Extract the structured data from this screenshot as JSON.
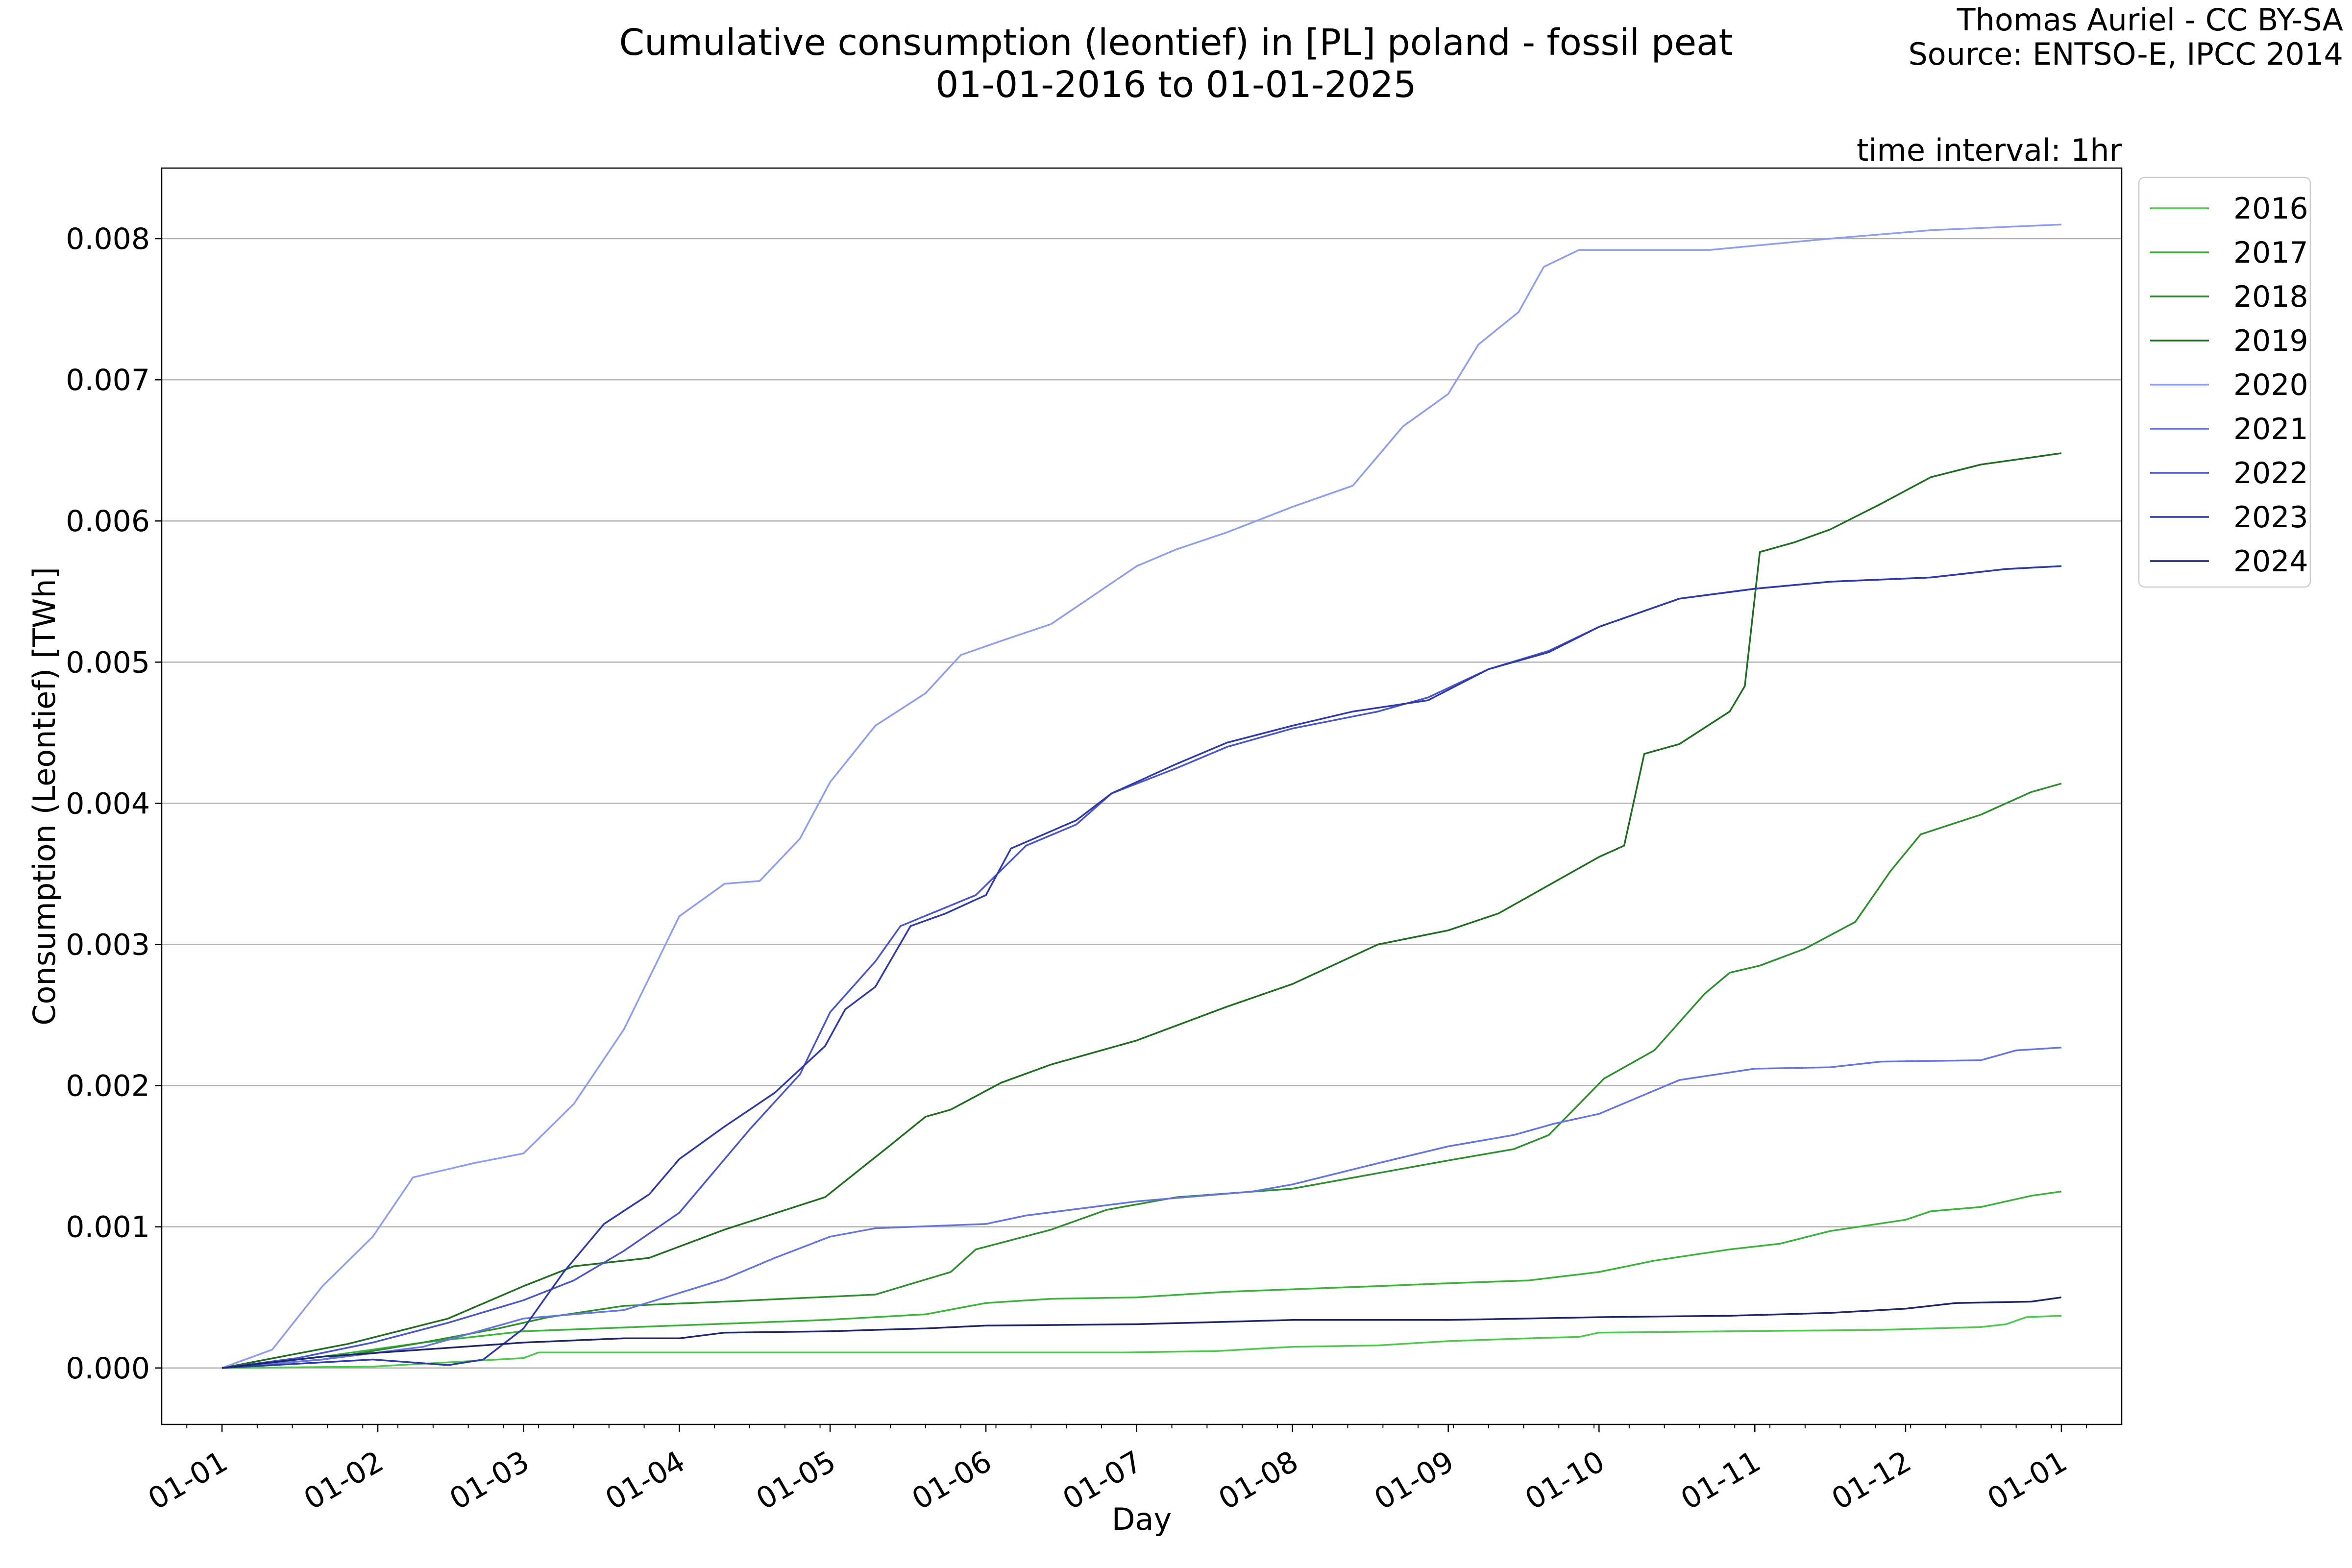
{
  "header": {
    "title_line1": "Cumulative consumption (leontief) in [PL] poland - fossil peat",
    "title_line2": "01-01-2016 to 01-01-2025",
    "credit_line1": "Thomas Auriel - CC BY-SA",
    "credit_line2": "Source: ENTSO-E, IPCC 2014",
    "interval_note": "time interval: 1hr"
  },
  "chart_data": {
    "type": "line",
    "title": "Cumulative consumption (leontief) in [PL] poland - fossil peat",
    "subtitle": "01-01-2016 to 01-01-2025",
    "xlabel": "Day",
    "ylabel": "Consumption (Leontief) [TWh]",
    "x_unit": "day of year",
    "xlim": [
      -12,
      378
    ],
    "ylim": [
      -0.0004,
      0.0085
    ],
    "x_ticks": [
      {
        "label": "01-01",
        "day": 0
      },
      {
        "label": "01-02",
        "day": 31
      },
      {
        "label": "01-03",
        "day": 60
      },
      {
        "label": "01-04",
        "day": 91
      },
      {
        "label": "01-05",
        "day": 121
      },
      {
        "label": "01-06",
        "day": 152
      },
      {
        "label": "01-07",
        "day": 182
      },
      {
        "label": "01-08",
        "day": 213
      },
      {
        "label": "01-09",
        "day": 244
      },
      {
        "label": "01-10",
        "day": 274
      },
      {
        "label": "01-11",
        "day": 305
      },
      {
        "label": "01-12",
        "day": 335
      },
      {
        "label": "01-01",
        "day": 366
      }
    ],
    "y_ticks": [
      {
        "label": "0.000",
        "value": 0
      },
      {
        "label": "0.001",
        "value": 0.001
      },
      {
        "label": "0.002",
        "value": 0.002
      },
      {
        "label": "0.003",
        "value": 0.003
      },
      {
        "label": "0.004",
        "value": 0.004
      },
      {
        "label": "0.005",
        "value": 0.005
      },
      {
        "label": "0.006",
        "value": 0.006
      },
      {
        "label": "0.007",
        "value": 0.007
      },
      {
        "label": "0.008",
        "value": 0.008
      }
    ],
    "grid": "horizontal",
    "legend_position": "outside-right",
    "series": [
      {
        "name": "2016",
        "color": "#4cc94c",
        "points": [
          [
            0,
            0
          ],
          [
            30,
            1e-05
          ],
          [
            60,
            7e-05
          ],
          [
            63,
            0.00011
          ],
          [
            120,
            0.00011
          ],
          [
            180,
            0.00011
          ],
          [
            198,
            0.00012
          ],
          [
            213,
            0.00015
          ],
          [
            230,
            0.00016
          ],
          [
            244,
            0.00019
          ],
          [
            260,
            0.00021
          ],
          [
            270,
            0.00022
          ],
          [
            274,
            0.00025
          ],
          [
            300,
            0.00026
          ],
          [
            330,
            0.00027
          ],
          [
            350,
            0.00029
          ],
          [
            355,
            0.00031
          ],
          [
            359,
            0.00036
          ],
          [
            366,
            0.00037
          ]
        ]
      },
      {
        "name": "2017",
        "color": "#3bb33b",
        "points": [
          [
            0,
            0
          ],
          [
            20,
            8e-05
          ],
          [
            40,
            0.00018
          ],
          [
            60,
            0.00026
          ],
          [
            90,
            0.0003
          ],
          [
            120,
            0.00034
          ],
          [
            140,
            0.00038
          ],
          [
            152,
            0.00046
          ],
          [
            165,
            0.00049
          ],
          [
            182,
            0.0005
          ],
          [
            200,
            0.00054
          ],
          [
            230,
            0.00058
          ],
          [
            244,
            0.0006
          ],
          [
            260,
            0.00062
          ],
          [
            274,
            0.00068
          ],
          [
            285,
            0.00076
          ],
          [
            300,
            0.00084
          ],
          [
            310,
            0.00088
          ],
          [
            320,
            0.00097
          ],
          [
            335,
            0.00105
          ],
          [
            340,
            0.00111
          ],
          [
            350,
            0.00114
          ],
          [
            360,
            0.00122
          ],
          [
            366,
            0.00125
          ]
        ]
      },
      {
        "name": "2018",
        "color": "#2e8f2e",
        "points": [
          [
            0,
            0
          ],
          [
            20,
            6e-05
          ],
          [
            40,
            0.00018
          ],
          [
            55,
            0.00028
          ],
          [
            65,
            0.00036
          ],
          [
            80,
            0.00044
          ],
          [
            100,
            0.00047
          ],
          [
            130,
            0.00052
          ],
          [
            145,
            0.00068
          ],
          [
            150,
            0.00084
          ],
          [
            165,
            0.00098
          ],
          [
            176,
            0.00112
          ],
          [
            190,
            0.00121
          ],
          [
            213,
            0.00127
          ],
          [
            230,
            0.00138
          ],
          [
            244,
            0.00147
          ],
          [
            257,
            0.00155
          ],
          [
            264,
            0.00165
          ],
          [
            275,
            0.00205
          ],
          [
            285,
            0.00225
          ],
          [
            295,
            0.00265
          ],
          [
            300,
            0.0028
          ],
          [
            306,
            0.00285
          ],
          [
            315,
            0.00297
          ],
          [
            325,
            0.00316
          ],
          [
            332,
            0.00352
          ],
          [
            338,
            0.00378
          ],
          [
            350,
            0.00392
          ],
          [
            360,
            0.00408
          ],
          [
            366,
            0.00414
          ]
        ]
      },
      {
        "name": "2019",
        "color": "#1f6e1f",
        "points": [
          [
            0,
            0
          ],
          [
            25,
            0.00017
          ],
          [
            45,
            0.00035
          ],
          [
            60,
            0.00058
          ],
          [
            70,
            0.00072
          ],
          [
            85,
            0.00078
          ],
          [
            100,
            0.00098
          ],
          [
            120,
            0.00121
          ],
          [
            132,
            0.00155
          ],
          [
            140,
            0.00178
          ],
          [
            145,
            0.00183
          ],
          [
            155,
            0.00202
          ],
          [
            165,
            0.00215
          ],
          [
            182,
            0.00232
          ],
          [
            200,
            0.00256
          ],
          [
            213,
            0.00272
          ],
          [
            230,
            0.003
          ],
          [
            244,
            0.0031
          ],
          [
            254,
            0.00322
          ],
          [
            264,
            0.00342
          ],
          [
            274,
            0.00362
          ],
          [
            279,
            0.0037
          ],
          [
            283,
            0.00435
          ],
          [
            290,
            0.00442
          ],
          [
            300,
            0.00465
          ],
          [
            303,
            0.00483
          ],
          [
            306,
            0.00578
          ],
          [
            313,
            0.00585
          ],
          [
            320,
            0.00594
          ],
          [
            330,
            0.00612
          ],
          [
            340,
            0.00631
          ],
          [
            350,
            0.0064
          ],
          [
            360,
            0.00645
          ],
          [
            366,
            0.00648
          ]
        ]
      },
      {
        "name": "2020",
        "color": "#8f9cf0",
        "points": [
          [
            0,
            0
          ],
          [
            10,
            0.00013
          ],
          [
            20,
            0.00058
          ],
          [
            30,
            0.00093
          ],
          [
            38,
            0.00135
          ],
          [
            50,
            0.00145
          ],
          [
            60,
            0.00152
          ],
          [
            70,
            0.00187
          ],
          [
            80,
            0.0024
          ],
          [
            91,
            0.0032
          ],
          [
            100,
            0.00343
          ],
          [
            107,
            0.00345
          ],
          [
            115,
            0.00375
          ],
          [
            121,
            0.00415
          ],
          [
            130,
            0.00455
          ],
          [
            140,
            0.00478
          ],
          [
            147,
            0.00505
          ],
          [
            155,
            0.00515
          ],
          [
            165,
            0.00527
          ],
          [
            182,
            0.00568
          ],
          [
            190,
            0.0058
          ],
          [
            200,
            0.00592
          ],
          [
            213,
            0.0061
          ],
          [
            225,
            0.00625
          ],
          [
            235,
            0.00667
          ],
          [
            244,
            0.0069
          ],
          [
            250,
            0.00725
          ],
          [
            258,
            0.00748
          ],
          [
            263,
            0.0078
          ],
          [
            270,
            0.00792
          ],
          [
            285,
            0.00792
          ],
          [
            296,
            0.00792
          ],
          [
            305,
            0.00795
          ],
          [
            320,
            0.008
          ],
          [
            340,
            0.00806
          ],
          [
            366,
            0.0081
          ]
        ]
      },
      {
        "name": "2021",
        "color": "#6474e0",
        "points": [
          [
            0,
            0
          ],
          [
            20,
            6e-05
          ],
          [
            40,
            0.00015
          ],
          [
            60,
            0.00035
          ],
          [
            80,
            0.00041
          ],
          [
            100,
            0.00063
          ],
          [
            110,
            0.00078
          ],
          [
            121,
            0.00093
          ],
          [
            130,
            0.00099
          ],
          [
            152,
            0.00102
          ],
          [
            160,
            0.00108
          ],
          [
            182,
            0.00118
          ],
          [
            205,
            0.00125
          ],
          [
            213,
            0.0013
          ],
          [
            230,
            0.00145
          ],
          [
            244,
            0.00157
          ],
          [
            257,
            0.00165
          ],
          [
            265,
            0.00173
          ],
          [
            274,
            0.0018
          ],
          [
            290,
            0.00204
          ],
          [
            305,
            0.00212
          ],
          [
            320,
            0.00213
          ],
          [
            330,
            0.00217
          ],
          [
            350,
            0.00218
          ],
          [
            357,
            0.00225
          ],
          [
            366,
            0.00227
          ]
        ]
      },
      {
        "name": "2022",
        "color": "#4a56c8",
        "points": [
          [
            0,
            0
          ],
          [
            15,
            7e-05
          ],
          [
            30,
            0.00018
          ],
          [
            45,
            0.00032
          ],
          [
            60,
            0.00048
          ],
          [
            70,
            0.00062
          ],
          [
            80,
            0.00083
          ],
          [
            91,
            0.0011
          ],
          [
            105,
            0.00169
          ],
          [
            115,
            0.00208
          ],
          [
            121,
            0.00252
          ],
          [
            130,
            0.00288
          ],
          [
            135,
            0.00313
          ],
          [
            150,
            0.00335
          ],
          [
            160,
            0.0037
          ],
          [
            170,
            0.00385
          ],
          [
            177,
            0.00407
          ],
          [
            190,
            0.00425
          ],
          [
            200,
            0.0044
          ],
          [
            213,
            0.00453
          ],
          [
            230,
            0.00465
          ],
          [
            240,
            0.00475
          ],
          [
            252,
            0.00495
          ],
          [
            264,
            0.00508
          ],
          [
            274,
            0.00525
          ],
          [
            290,
            0.00545
          ],
          [
            305,
            0.00552
          ],
          [
            320,
            0.00557
          ],
          [
            340,
            0.0056
          ],
          [
            355,
            0.00566
          ],
          [
            366,
            0.00568
          ]
        ]
      },
      {
        "name": "2023",
        "color": "#2f3aa8",
        "points": [
          [
            0,
            0
          ],
          [
            30,
            6e-05
          ],
          [
            45,
            2e-05
          ],
          [
            52,
            6e-05
          ],
          [
            60,
            0.00028
          ],
          [
            68,
            0.00068
          ],
          [
            76,
            0.00102
          ],
          [
            85,
            0.00123
          ],
          [
            91,
            0.00148
          ],
          [
            100,
            0.00171
          ],
          [
            110,
            0.00195
          ],
          [
            120,
            0.00228
          ],
          [
            124,
            0.00254
          ],
          [
            130,
            0.0027
          ],
          [
            137,
            0.00313
          ],
          [
            144,
            0.00322
          ],
          [
            152,
            0.00335
          ],
          [
            157,
            0.00368
          ],
          [
            170,
            0.00388
          ],
          [
            177,
            0.00407
          ],
          [
            190,
            0.00428
          ],
          [
            200,
            0.00443
          ],
          [
            213,
            0.00455
          ],
          [
            225,
            0.00465
          ],
          [
            240,
            0.00473
          ],
          [
            252,
            0.00495
          ],
          [
            264,
            0.00507
          ],
          [
            274,
            0.00525
          ],
          [
            290,
            0.00545
          ],
          [
            305,
            0.00552
          ],
          [
            320,
            0.00557
          ],
          [
            340,
            0.0056
          ],
          [
            355,
            0.00566
          ],
          [
            366,
            0.00568
          ]
        ]
      },
      {
        "name": "2024",
        "color": "#1e2668",
        "points": [
          [
            0,
            0
          ],
          [
            20,
            8e-05
          ],
          [
            40,
            0.00013
          ],
          [
            60,
            0.00018
          ],
          [
            80,
            0.00021
          ],
          [
            91,
            0.00021
          ],
          [
            100,
            0.00025
          ],
          [
            121,
            0.00026
          ],
          [
            130,
            0.00027
          ],
          [
            140,
            0.00028
          ],
          [
            152,
            0.0003
          ],
          [
            182,
            0.00031
          ],
          [
            213,
            0.00034
          ],
          [
            244,
            0.00034
          ],
          [
            274,
            0.00036
          ],
          [
            300,
            0.00037
          ],
          [
            320,
            0.00039
          ],
          [
            335,
            0.00042
          ],
          [
            345,
            0.00046
          ],
          [
            360,
            0.00047
          ],
          [
            366,
            0.0005
          ]
        ]
      }
    ]
  }
}
